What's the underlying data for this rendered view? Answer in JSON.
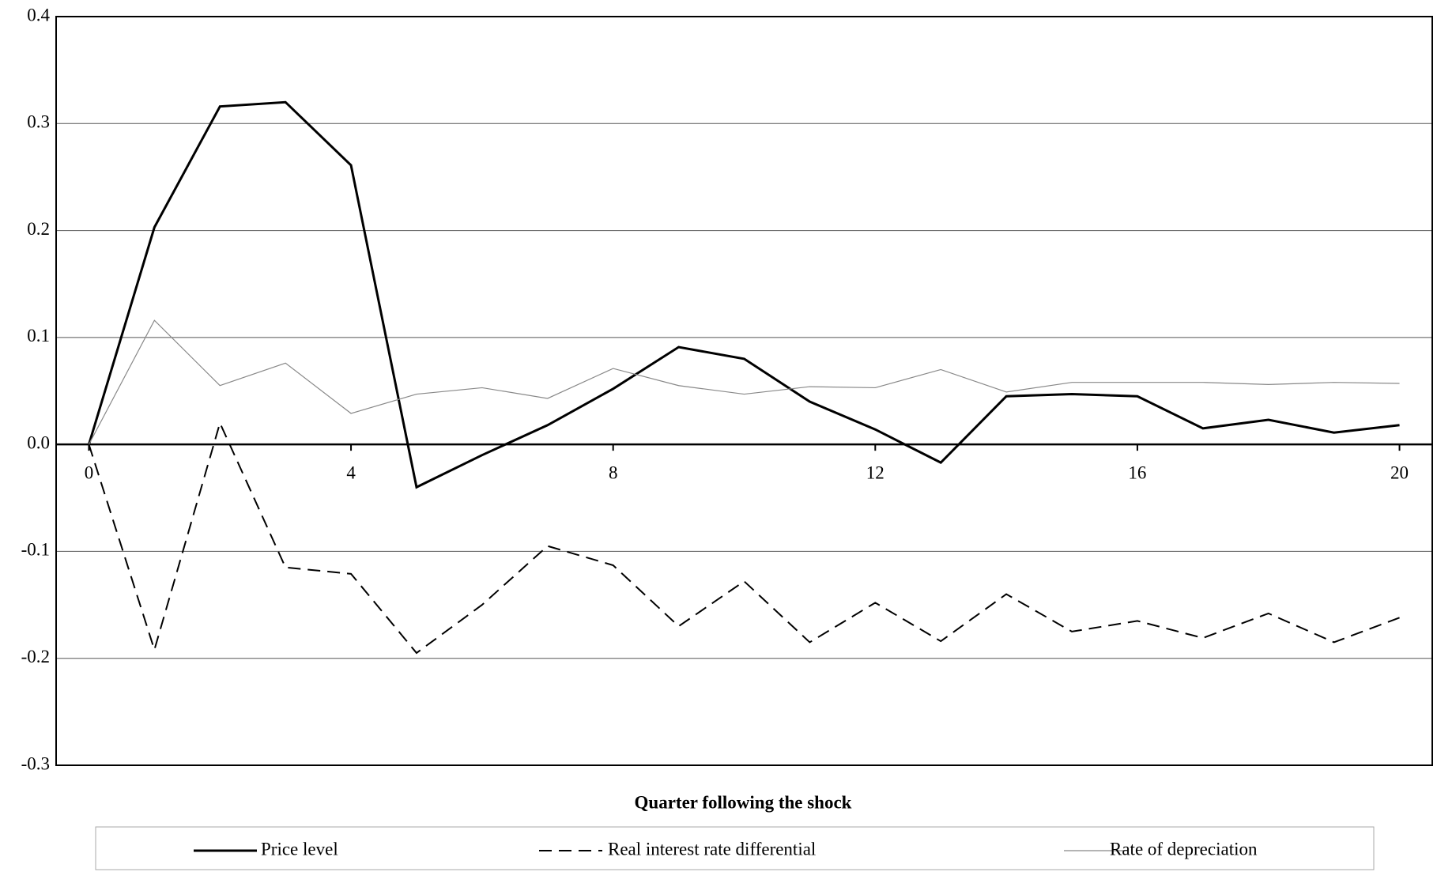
{
  "chart_data": {
    "type": "line",
    "x_label": "Quarter following the shock",
    "x": [
      0,
      1,
      2,
      3,
      4,
      5,
      6,
      7,
      8,
      9,
      10,
      11,
      12,
      13,
      14,
      15,
      16,
      17,
      18,
      19,
      20
    ],
    "xlim": [
      -0.5,
      20.5
    ],
    "xticks": [
      0,
      4,
      8,
      12,
      16,
      20
    ],
    "ylim": [
      -0.3,
      0.4
    ],
    "yticks": [
      -0.3,
      -0.2,
      -0.1,
      {
        "value": 0,
        "label": "0.0"
      },
      0.1,
      0.2,
      0.3,
      0.4
    ],
    "grid": true,
    "legend": "bottom",
    "series": [
      {
        "name": "Price level",
        "color": "#000000",
        "style": "solid",
        "values": [
          0,
          0.203,
          0.316,
          0.32,
          0.261,
          -0.04,
          -0.01,
          0.018,
          0.052,
          0.091,
          0.08,
          0.04,
          0.014,
          -0.017,
          0.045,
          0.047,
          0.045,
          0.015,
          0.023,
          0.011,
          0.018
        ]
      },
      {
        "name": "Real interest rate differential",
        "color": "#000000",
        "style": "dashed",
        "values": [
          0,
          -0.192,
          0.02,
          -0.115,
          -0.121,
          -0.195,
          -0.15,
          -0.095,
          -0.113,
          -0.17,
          -0.128,
          -0.185,
          -0.148,
          -0.184,
          -0.14,
          -0.175,
          -0.165,
          -0.181,
          -0.158,
          -0.185,
          -0.162
        ]
      },
      {
        "name": "Rate of depreciation",
        "color": "#888888",
        "style": "thin",
        "values": [
          0,
          0.116,
          0.055,
          0.076,
          0.029,
          0.047,
          0.053,
          0.043,
          0.071,
          0.055,
          0.047,
          0.054,
          0.053,
          0.07,
          0.049,
          0.058,
          0.058,
          0.058,
          0.056,
          0.058,
          0.057
        ]
      }
    ]
  }
}
